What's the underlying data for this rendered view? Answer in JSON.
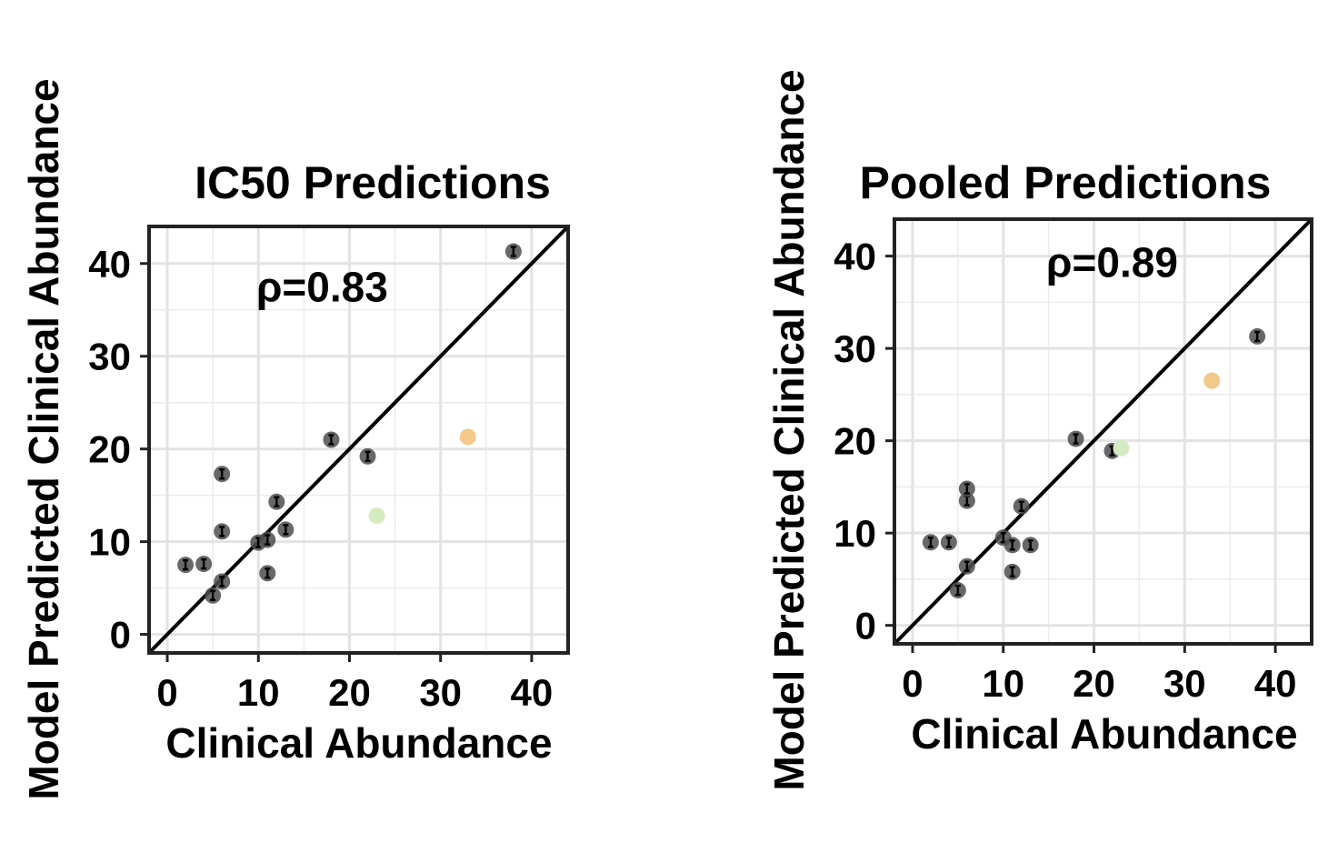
{
  "chart_data": [
    {
      "type": "scatter",
      "title": "IC50 Predictions",
      "xlabel": "Clinical Abundance",
      "ylabel": "Model Predicted Clinical Abundance",
      "xlim": [
        -2,
        44
      ],
      "ylim": [
        -2,
        44
      ],
      "xticks": [
        0,
        10,
        20,
        30,
        40
      ],
      "yticks": [
        0,
        10,
        20,
        30,
        40
      ],
      "xtick_labels": [
        "0",
        "10",
        "20",
        "30",
        "40"
      ],
      "ytick_labels": [
        "0",
        "10",
        "20",
        "30",
        "40"
      ],
      "grid": true,
      "identity_line": true,
      "annotation": {
        "text": "ρ=0.83",
        "x": 17,
        "y": 37.5
      },
      "series": [
        {
          "name": "main",
          "color": "#4d4d4d",
          "points": [
            [
              2,
              7.5
            ],
            [
              4,
              7.6
            ],
            [
              5,
              4.2
            ],
            [
              6,
              5.7
            ],
            [
              6,
              11.1
            ],
            [
              6,
              17.3
            ],
            [
              10,
              9.9
            ],
            [
              11,
              10.2
            ],
            [
              11,
              6.6
            ],
            [
              12,
              14.3
            ],
            [
              13,
              11.3
            ],
            [
              18,
              21
            ],
            [
              22,
              19.2
            ],
            [
              38,
              41.3
            ]
          ]
        },
        {
          "name": "green",
          "color": "#d4eac0",
          "points": [
            [
              23,
              12.8
            ]
          ]
        },
        {
          "name": "orange",
          "color": "#f3c98b",
          "points": [
            [
              33,
              21.3
            ]
          ]
        }
      ]
    },
    {
      "type": "scatter",
      "title": "Pooled Predictions",
      "xlabel": "Clinical Abundance",
      "ylabel": "Model Predicted Clinical Abundance",
      "xlim": [
        -2,
        44
      ],
      "ylim": [
        -2,
        44
      ],
      "xticks": [
        0,
        10,
        20,
        30,
        40
      ],
      "yticks": [
        0,
        10,
        20,
        30,
        40
      ],
      "xtick_labels": [
        "0",
        "10",
        "20",
        "30",
        "40"
      ],
      "ytick_labels": [
        "0",
        "10",
        "20",
        "30",
        "40"
      ],
      "grid": true,
      "identity_line": true,
      "annotation": {
        "text": "ρ=0.89",
        "x": 22,
        "y": 39.3
      },
      "series": [
        {
          "name": "main",
          "color": "#4d4d4d",
          "points": [
            [
              2,
              9
            ],
            [
              4,
              9
            ],
            [
              5,
              3.8
            ],
            [
              6,
              6.4
            ],
            [
              6,
              13.5
            ],
            [
              6,
              14.8
            ],
            [
              10,
              9.5
            ],
            [
              11,
              8.7
            ],
            [
              11,
              5.8
            ],
            [
              12,
              12.9
            ],
            [
              13,
              8.7
            ],
            [
              18,
              20.2
            ],
            [
              22,
              18.9
            ],
            [
              38,
              31.3
            ]
          ]
        },
        {
          "name": "green",
          "color": "#d4eac0",
          "points": [
            [
              23,
              19.2
            ]
          ]
        },
        {
          "name": "orange",
          "color": "#f3c98b",
          "points": [
            [
              33,
              26.5
            ]
          ]
        }
      ]
    }
  ]
}
